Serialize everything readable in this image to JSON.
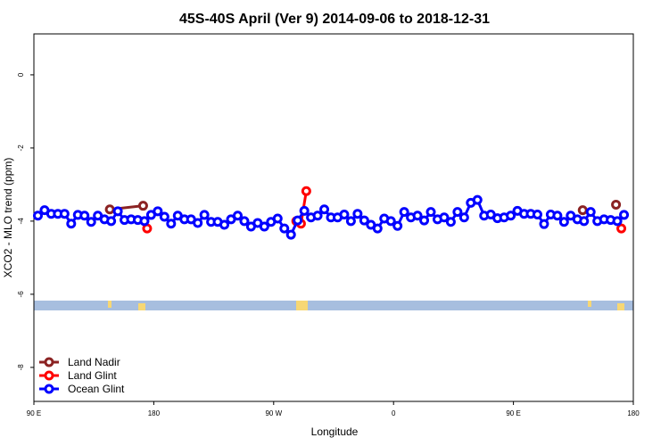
{
  "chart_data": {
    "type": "line",
    "title": "45S-40S April (Ver 9)   2014-09-06 to 2018-12-31",
    "x_label": "Longitude",
    "y_label": "XCO2 - MLO trend (ppm)",
    "xlim": [
      90,
      540
    ],
    "xticks": [
      {
        "value": 90,
        "label": "90 E"
      },
      180,
      {
        "value": 270,
        "label": "90 W"
      },
      {
        "value": 360,
        "label": "0"
      },
      {
        "value": 450,
        "label": "90 E"
      },
      {
        "value": 540,
        "label": "180"
      }
    ],
    "ylim": [
      -8.93,
      1.12
    ],
    "yticks": [
      0,
      -2,
      -4,
      -6,
      -8
    ],
    "legend": "bottom-left",
    "series": [
      {
        "name": "Land Nadir",
        "color": "#8b2323",
        "x": [
          147,
          172,
          null,
          502,
          null,
          527
        ],
        "values": [
          -3.68,
          -3.58,
          null,
          -3.7,
          null,
          -3.55
        ]
      },
      {
        "name": "Land Glint",
        "color": "#ff0000",
        "x": [
          175,
          null,
          287,
          290.5,
          294.5,
          null,
          531
        ],
        "values": [
          -4.2,
          null,
          -4.0,
          -4.07,
          -3.18,
          null,
          -4.2
        ]
      },
      {
        "name": "Ocean Glint",
        "color": "#0000ff",
        "x": [
          93,
          98,
          103,
          108,
          113,
          118,
          123,
          128,
          133,
          138,
          143,
          148,
          153,
          158,
          163,
          168,
          173,
          178,
          183,
          188,
          193,
          198,
          203,
          208,
          213,
          218,
          223,
          228,
          233,
          238,
          243,
          248,
          253,
          258,
          263,
          268,
          273,
          278,
          283,
          288,
          293,
          298,
          303,
          308,
          313,
          318,
          323,
          328,
          333,
          338,
          343,
          348,
          353,
          358,
          363,
          368,
          373,
          378,
          383,
          388,
          393,
          398,
          403,
          408,
          413,
          418,
          423,
          428,
          433,
          438,
          443,
          448,
          453,
          458,
          463,
          468,
          473,
          478,
          483,
          488,
          493,
          498,
          503,
          508,
          513,
          518,
          523,
          528,
          533
        ],
        "values": [
          -3.85,
          -3.7,
          -3.8,
          -3.8,
          -3.8,
          -4.07,
          -3.83,
          -3.85,
          -4.02,
          -3.85,
          -3.95,
          -4.0,
          -3.73,
          -3.97,
          -3.95,
          -3.97,
          -4.0,
          -3.83,
          -3.73,
          -3.88,
          -4.07,
          -3.85,
          -3.95,
          -3.95,
          -4.05,
          -3.83,
          -4.02,
          -4.02,
          -4.1,
          -3.95,
          -3.85,
          -4.0,
          -4.15,
          -4.05,
          -4.15,
          -4.02,
          -3.93,
          -4.2,
          -4.37,
          -3.98,
          -3.72,
          -3.9,
          -3.85,
          -3.68,
          -3.9,
          -3.9,
          -3.82,
          -4.0,
          -3.8,
          -3.98,
          -4.1,
          -4.2,
          -3.93,
          -4.0,
          -4.13,
          -3.75,
          -3.9,
          -3.85,
          -3.98,
          -3.75,
          -3.95,
          -3.9,
          -4.02,
          -3.75,
          -3.9,
          -3.5,
          -3.42,
          -3.85,
          -3.82,
          -3.92,
          -3.9,
          -3.85,
          -3.72,
          -3.8,
          -3.8,
          -3.82,
          -4.08,
          -3.82,
          -3.85,
          -4.02,
          -3.85,
          -3.95,
          -4.0,
          -3.75,
          -4.0,
          -3.95,
          -3.97,
          -4.0,
          -3.83
        ]
      }
    ]
  }
}
